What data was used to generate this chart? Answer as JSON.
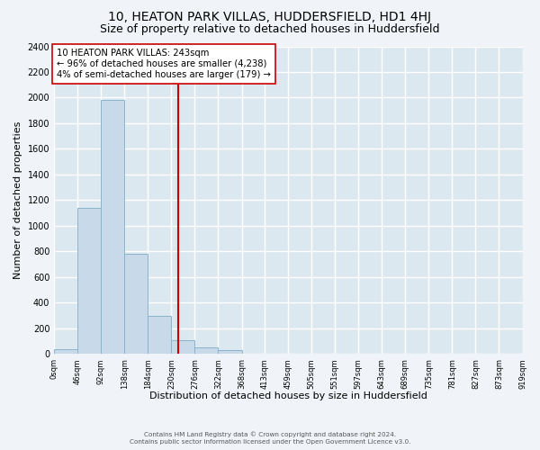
{
  "title": "10, HEATON PARK VILLAS, HUDDERSFIELD, HD1 4HJ",
  "subtitle": "Size of property relative to detached houses in Huddersfield",
  "xlabel": "Distribution of detached houses by size in Huddersfield",
  "ylabel": "Number of detached properties",
  "bin_edges": [
    0,
    46,
    92,
    138,
    184,
    230,
    276,
    322,
    368,
    413,
    459,
    505,
    551,
    597,
    643,
    689,
    735,
    781,
    827,
    873,
    919
  ],
  "bar_heights": [
    40,
    1140,
    1980,
    780,
    300,
    105,
    50,
    30,
    0,
    0,
    0,
    0,
    0,
    0,
    0,
    0,
    0,
    0,
    0,
    0
  ],
  "bar_color": "#c8daea",
  "bar_edge_color": "#8ab4cc",
  "property_value": 243,
  "red_line_color": "#cc0000",
  "annotation_text_line1": "10 HEATON PARK VILLAS: 243sqm",
  "annotation_text_line2": "← 96% of detached houses are smaller (4,238)",
  "annotation_text_line3": "4% of semi-detached houses are larger (179) →",
  "annotation_box_facecolor": "#ffffff",
  "annotation_box_edge": "#cc0000",
  "ylim": [
    0,
    2400
  ],
  "yticks": [
    0,
    200,
    400,
    600,
    800,
    1000,
    1200,
    1400,
    1600,
    1800,
    2000,
    2200,
    2400
  ],
  "tick_labels": [
    "0sqm",
    "46sqm",
    "92sqm",
    "138sqm",
    "184sqm",
    "230sqm",
    "276sqm",
    "322sqm",
    "368sqm",
    "413sqm",
    "459sqm",
    "505sqm",
    "551sqm",
    "597sqm",
    "643sqm",
    "689sqm",
    "735sqm",
    "781sqm",
    "827sqm",
    "873sqm",
    "919sqm"
  ],
  "footer_line1": "Contains HM Land Registry data © Crown copyright and database right 2024.",
  "footer_line2": "Contains public sector information licensed under the Open Government Licence v3.0.",
  "fig_background": "#f0f4f8",
  "plot_background": "#dce8f0",
  "grid_color": "#ffffff",
  "title_fontsize": 10,
  "subtitle_fontsize": 9,
  "ylabel_fontsize": 8,
  "xlabel_fontsize": 8
}
